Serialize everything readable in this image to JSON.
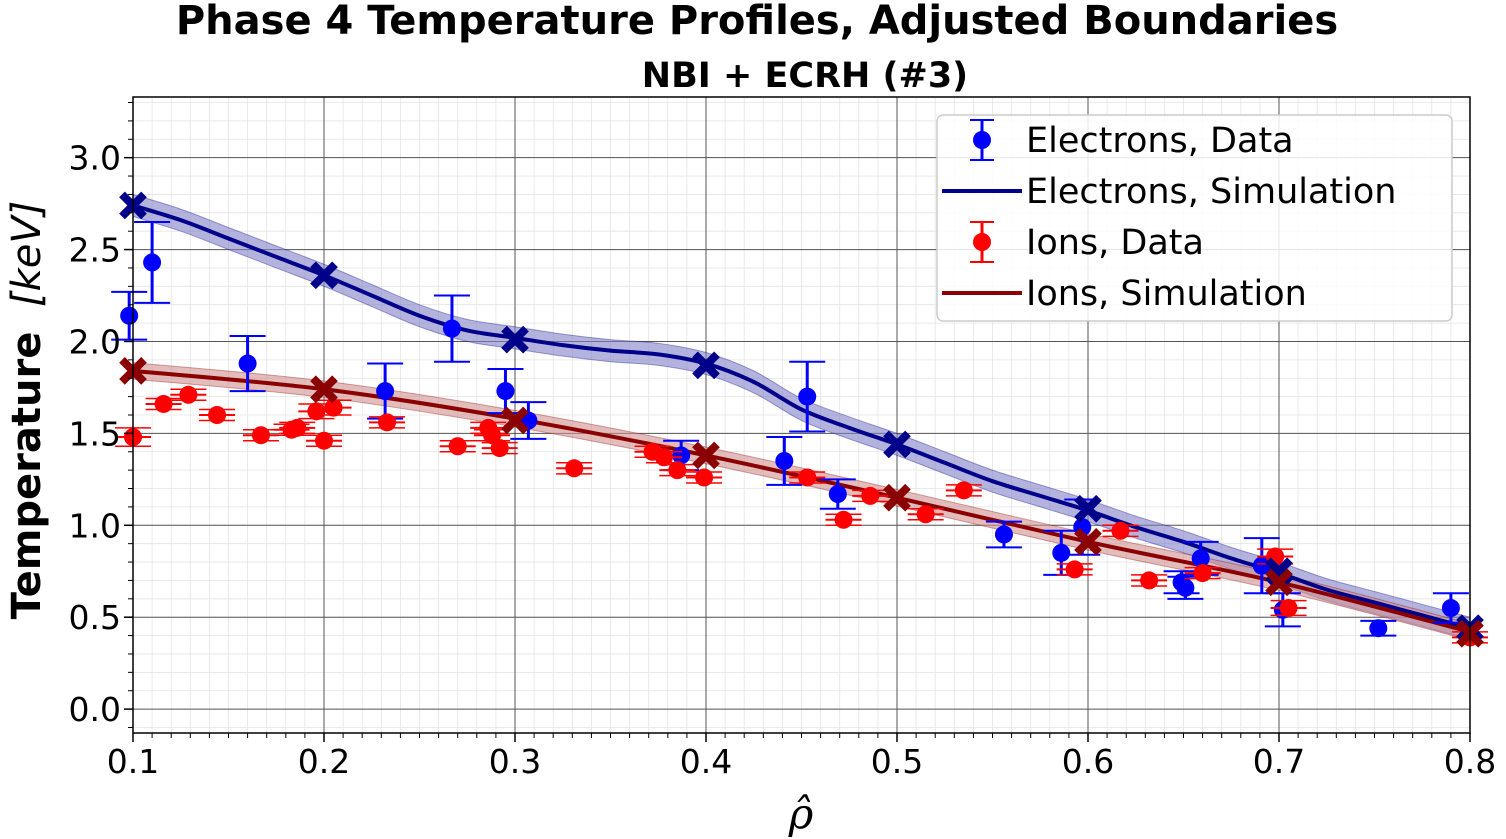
{
  "chart_data": {
    "type": "line",
    "title": "Phase 4 Temperature Profiles, Adjusted Boundaries",
    "subtitle": "NBI + ECRH (#3)",
    "xlabel": "ρ̂",
    "ylabel_bold": "Temperature",
    "ylabel_unit": "[keV]",
    "xlim": [
      0.1,
      0.8
    ],
    "ylim": [
      -0.13,
      3.33
    ],
    "xticks": [
      "0.1",
      "0.2",
      "0.3",
      "0.4",
      "0.5",
      "0.6",
      "0.7",
      "0.8"
    ],
    "yticks": [
      "0.0",
      "0.5",
      "1.0",
      "1.5",
      "2.0",
      "2.5",
      "3.0"
    ],
    "grid": true,
    "legend_position": "top-right",
    "series": [
      {
        "name": "Electrons, Data",
        "kind": "data",
        "color": "#0000ff",
        "points": [
          {
            "x": 0.098,
            "y": 2.14,
            "err": 0.13
          },
          {
            "x": 0.11,
            "y": 2.43,
            "err": 0.22
          },
          {
            "x": 0.16,
            "y": 1.88,
            "err": 0.15
          },
          {
            "x": 0.232,
            "y": 1.73,
            "err": 0.15
          },
          {
            "x": 0.267,
            "y": 2.07,
            "err": 0.18
          },
          {
            "x": 0.295,
            "y": 1.73,
            "err": 0.12
          },
          {
            "x": 0.307,
            "y": 1.57,
            "err": 0.1
          },
          {
            "x": 0.387,
            "y": 1.38,
            "err": 0.08
          },
          {
            "x": 0.441,
            "y": 1.35,
            "err": 0.13
          },
          {
            "x": 0.453,
            "y": 1.7,
            "err": 0.19
          },
          {
            "x": 0.469,
            "y": 1.17,
            "err": 0.08
          },
          {
            "x": 0.556,
            "y": 0.95,
            "err": 0.07
          },
          {
            "x": 0.586,
            "y": 0.85,
            "err": 0.12
          },
          {
            "x": 0.597,
            "y": 0.99,
            "err": 0.15
          },
          {
            "x": 0.649,
            "y": 0.69,
            "err": 0.06
          },
          {
            "x": 0.651,
            "y": 0.66,
            "err": 0.06
          },
          {
            "x": 0.659,
            "y": 0.82,
            "err": 0.09
          },
          {
            "x": 0.691,
            "y": 0.78,
            "err": 0.15
          },
          {
            "x": 0.702,
            "y": 0.54,
            "err": 0.09
          },
          {
            "x": 0.752,
            "y": 0.44,
            "err": 0.04
          },
          {
            "x": 0.79,
            "y": 0.55,
            "err": 0.08
          }
        ]
      },
      {
        "name": "Electrons, Simulation",
        "kind": "sim",
        "color": "#00008b",
        "band_color": "#8080c8",
        "band": 0.06,
        "x": [
          0.1,
          0.125,
          0.15,
          0.175,
          0.2,
          0.225,
          0.25,
          0.275,
          0.3,
          0.325,
          0.35,
          0.375,
          0.4,
          0.425,
          0.45,
          0.475,
          0.5,
          0.525,
          0.55,
          0.575,
          0.6,
          0.625,
          0.65,
          0.675,
          0.7,
          0.725,
          0.75,
          0.775,
          0.8
        ],
        "y": [
          2.74,
          2.66,
          2.56,
          2.46,
          2.36,
          2.25,
          2.14,
          2.06,
          2.02,
          1.98,
          1.95,
          1.93,
          1.88,
          1.78,
          1.63,
          1.53,
          1.44,
          1.34,
          1.24,
          1.16,
          1.08,
          0.99,
          0.91,
          0.82,
          0.74,
          0.65,
          0.58,
          0.51,
          0.44
        ],
        "markers": [
          [
            0.1,
            2.74
          ],
          [
            0.2,
            2.36
          ],
          [
            0.3,
            2.01
          ],
          [
            0.4,
            1.87
          ],
          [
            0.5,
            1.44
          ],
          [
            0.6,
            1.09
          ],
          [
            0.7,
            0.75
          ],
          [
            0.8,
            0.44
          ]
        ]
      },
      {
        "name": "Ions, Data",
        "kind": "data",
        "color": "#ff0000",
        "points": [
          {
            "x": 0.1,
            "y": 1.48,
            "err": 0.05
          },
          {
            "x": 0.116,
            "y": 1.66,
            "err": 0.03
          },
          {
            "x": 0.129,
            "y": 1.71,
            "err": 0.03
          },
          {
            "x": 0.144,
            "y": 1.6,
            "err": 0.03
          },
          {
            "x": 0.167,
            "y": 1.49,
            "err": 0.03
          },
          {
            "x": 0.183,
            "y": 1.52,
            "err": 0.03
          },
          {
            "x": 0.186,
            "y": 1.53,
            "err": 0.03
          },
          {
            "x": 0.196,
            "y": 1.62,
            "err": 0.04
          },
          {
            "x": 0.2,
            "y": 1.46,
            "err": 0.03
          },
          {
            "x": 0.205,
            "y": 1.64,
            "err": 0.04
          },
          {
            "x": 0.233,
            "y": 1.56,
            "err": 0.03
          },
          {
            "x": 0.27,
            "y": 1.43,
            "err": 0.03
          },
          {
            "x": 0.286,
            "y": 1.53,
            "err": 0.03
          },
          {
            "x": 0.288,
            "y": 1.49,
            "err": 0.03
          },
          {
            "x": 0.292,
            "y": 1.42,
            "err": 0.03
          },
          {
            "x": 0.331,
            "y": 1.31,
            "err": 0.03
          },
          {
            "x": 0.372,
            "y": 1.4,
            "err": 0.03
          },
          {
            "x": 0.378,
            "y": 1.37,
            "err": 0.03
          },
          {
            "x": 0.385,
            "y": 1.3,
            "err": 0.03
          },
          {
            "x": 0.399,
            "y": 1.26,
            "err": 0.03
          },
          {
            "x": 0.453,
            "y": 1.26,
            "err": 0.03
          },
          {
            "x": 0.472,
            "y": 1.03,
            "err": 0.03
          },
          {
            "x": 0.486,
            "y": 1.16,
            "err": 0.03
          },
          {
            "x": 0.515,
            "y": 1.06,
            "err": 0.03
          },
          {
            "x": 0.535,
            "y": 1.19,
            "err": 0.03
          },
          {
            "x": 0.593,
            "y": 0.76,
            "err": 0.03
          },
          {
            "x": 0.617,
            "y": 0.97,
            "err": 0.03
          },
          {
            "x": 0.632,
            "y": 0.7,
            "err": 0.03
          },
          {
            "x": 0.66,
            "y": 0.74,
            "err": 0.03
          },
          {
            "x": 0.698,
            "y": 0.83,
            "err": 0.04
          },
          {
            "x": 0.705,
            "y": 0.55,
            "err": 0.04
          },
          {
            "x": 0.8,
            "y": 0.39,
            "err": 0.03
          }
        ]
      },
      {
        "name": "Ions, Simulation",
        "kind": "sim",
        "color": "#8b0000",
        "band_color": "#d09090",
        "band": 0.045,
        "x": [
          0.1,
          0.2,
          0.3,
          0.4,
          0.5,
          0.6,
          0.7,
          0.8
        ],
        "y": [
          1.84,
          1.74,
          1.58,
          1.38,
          1.15,
          0.91,
          0.69,
          0.42
        ],
        "markers": [
          [
            0.1,
            1.84
          ],
          [
            0.2,
            1.74
          ],
          [
            0.3,
            1.57
          ],
          [
            0.4,
            1.38
          ],
          [
            0.5,
            1.15
          ],
          [
            0.6,
            0.91
          ],
          [
            0.7,
            0.69
          ],
          [
            0.8,
            0.41
          ]
        ]
      }
    ]
  }
}
